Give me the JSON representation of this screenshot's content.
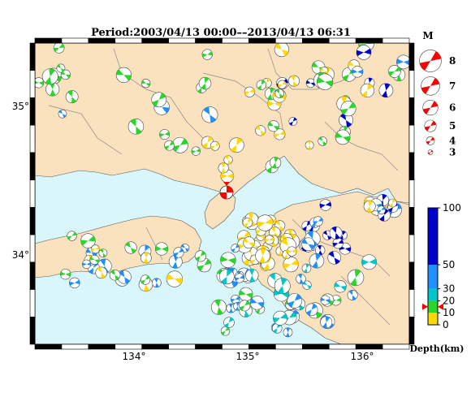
{
  "title": "Period:2003/04/13 00:00––2013/04/13 06:31",
  "map": {
    "lon_ticks": [
      "134°",
      "135°",
      "136°"
    ],
    "lat_ticks": [
      "35°",
      "34°"
    ],
    "colors": {
      "land": "#fbe2bf",
      "sea": "#d9f7fb",
      "frame": "#000000",
      "border": "#8a8a8a"
    }
  },
  "magnitude_legend": {
    "header": "M",
    "entries": [
      {
        "m": 8,
        "label": "8"
      },
      {
        "m": 7,
        "label": "7"
      },
      {
        "m": 6,
        "label": "6"
      },
      {
        "m": 5,
        "label": "5"
      },
      {
        "m": 4,
        "label": "4"
      },
      {
        "m": 3,
        "label": "3"
      }
    ],
    "color": "#ff0000"
  },
  "depth_scale": {
    "ticks": [
      "100",
      "50",
      "30",
      "20",
      "10",
      "0"
    ],
    "unit_label": "Depth(km)",
    "bands": [
      {
        "from": 0,
        "to": 10,
        "color": "#ffd800"
      },
      {
        "from": 10,
        "to": 20,
        "color": "#2bd62b"
      },
      {
        "from": 20,
        "to": 30,
        "color": "#00c8c8"
      },
      {
        "from": 30,
        "to": 50,
        "color": "#1e90ff"
      },
      {
        "from": 50,
        "to": 100,
        "color": "#0000cd"
      }
    ],
    "marker_depth_km": 15
  },
  "highlight_event": {
    "color": "#ff0000",
    "note_marker": "red"
  }
}
